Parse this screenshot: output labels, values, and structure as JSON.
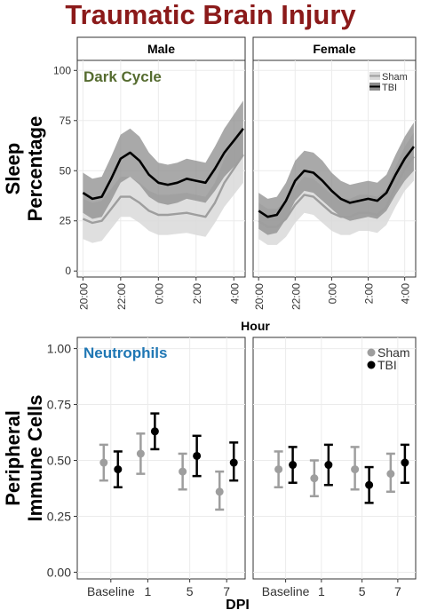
{
  "title": "Traumatic Brain Injury",
  "colors": {
    "title": "#8b1a1a",
    "dark_cycle_label": "#556b2f",
    "neutrophils_label": "#1f77b4",
    "sham": "#9e9e9e",
    "tbi": "#000000"
  },
  "chart_data": [
    {
      "type": "line",
      "panel_label": "Dark Cycle",
      "facets": [
        "Male",
        "Female"
      ],
      "xlabel": "Hour",
      "ylabel": "Sleep Percentage",
      "x_ticks": [
        "20:00",
        "22:00",
        "0:00",
        "2:00",
        "4:00"
      ],
      "x_tick_hours": [
        0,
        2,
        4,
        6,
        8
      ],
      "y_ticks": [
        0,
        25,
        50,
        75,
        100
      ],
      "ylim": [
        -3,
        105
      ],
      "xlim": [
        -0.3,
        8.6
      ],
      "legend": {
        "entries": [
          "Sham",
          "TBI"
        ],
        "position": "top-right"
      },
      "grid": true,
      "x": [
        0,
        0.5,
        1,
        1.5,
        2,
        2.5,
        3,
        3.5,
        4,
        4.5,
        5,
        5.5,
        6,
        6.5,
        7,
        7.5,
        8,
        8.5
      ],
      "series": [
        {
          "name": "Sham",
          "facet": "Male",
          "values": [
            26,
            24,
            25,
            31,
            37,
            37,
            34,
            30,
            28,
            28,
            28.5,
            29,
            28,
            27,
            34,
            44,
            51,
            58
          ],
          "lower": [
            16,
            14,
            15,
            21,
            27,
            27,
            24,
            20,
            18,
            18,
            18.5,
            19,
            18,
            17,
            24,
            32,
            38,
            44
          ],
          "upper": [
            36,
            34,
            35,
            41,
            47,
            47,
            44,
            40,
            38,
            38,
            38.5,
            39,
            38,
            37,
            44,
            56,
            64,
            72
          ]
        },
        {
          "name": "TBI",
          "facet": "Male",
          "values": [
            39,
            36,
            37,
            46,
            56,
            59,
            55,
            48,
            44,
            43,
            44,
            46,
            45,
            44,
            51,
            59,
            65,
            71
          ],
          "lower": [
            29,
            26,
            27,
            35,
            44,
            47,
            43,
            37,
            34,
            33,
            34,
            36,
            35,
            34,
            40,
            47,
            52,
            57
          ],
          "upper": [
            49,
            46,
            47,
            57,
            68,
            71,
            67,
            59,
            54,
            53,
            54,
            56,
            55,
            54,
            62,
            71,
            78,
            85
          ]
        },
        {
          "name": "Sham",
          "facet": "Female",
          "values": [
            25,
            22,
            22,
            26,
            33,
            38,
            37,
            33,
            29,
            27,
            27,
            29,
            29,
            28,
            32,
            42,
            51,
            57
          ],
          "lower": [
            16,
            13,
            13,
            17,
            24,
            29,
            28,
            24,
            20,
            18,
            18,
            20,
            20,
            19,
            23,
            32,
            40,
            45
          ],
          "upper": [
            34,
            31,
            31,
            35,
            42,
            47,
            46,
            42,
            38,
            36,
            36,
            38,
            38,
            37,
            41,
            52,
            62,
            69
          ]
        },
        {
          "name": "TBI",
          "facet": "Female",
          "values": [
            30,
            27,
            28,
            35,
            45,
            50,
            49,
            45,
            40,
            36,
            34,
            35,
            36,
            35,
            39,
            48,
            56,
            62
          ],
          "lower": [
            21,
            18,
            19,
            26,
            35,
            40,
            39,
            35,
            31,
            27,
            25,
            26,
            27,
            26,
            30,
            38,
            45,
            50
          ],
          "upper": [
            39,
            36,
            37,
            44,
            55,
            60,
            59,
            55,
            49,
            45,
            43,
            44,
            45,
            44,
            48,
            58,
            67,
            74
          ]
        }
      ]
    },
    {
      "type": "scatter",
      "panel_label": "Neutrophils",
      "facets": [
        "Male",
        "Female"
      ],
      "xlabel": "DPI",
      "ylabel": "Peripheral Immune Cells",
      "categories": [
        "Baseline",
        "1",
        "5",
        "7"
      ],
      "y_ticks": [
        "0.00",
        "0.25",
        "0.50",
        "0.75",
        "1.00"
      ],
      "y_tick_values": [
        0,
        0.25,
        0.5,
        0.75,
        1.0
      ],
      "ylim": [
        -0.03,
        1.05
      ],
      "legend": {
        "entries": [
          "Sham",
          "TBI"
        ],
        "position": "top-right"
      },
      "grid": true,
      "series": [
        {
          "name": "Sham",
          "facet": "Male",
          "values": [
            0.49,
            0.53,
            0.45,
            0.36
          ],
          "lower": [
            0.41,
            0.44,
            0.37,
            0.28
          ],
          "upper": [
            0.57,
            0.62,
            0.53,
            0.45
          ]
        },
        {
          "name": "TBI",
          "facet": "Male",
          "values": [
            0.46,
            0.63,
            0.52,
            0.49
          ],
          "lower": [
            0.38,
            0.55,
            0.43,
            0.41
          ],
          "upper": [
            0.54,
            0.71,
            0.61,
            0.58
          ]
        },
        {
          "name": "Sham",
          "facet": "Female",
          "values": [
            0.46,
            0.42,
            0.46,
            0.44
          ],
          "lower": [
            0.38,
            0.34,
            0.37,
            0.36
          ],
          "upper": [
            0.54,
            0.5,
            0.56,
            0.53
          ]
        },
        {
          "name": "TBI",
          "facet": "Female",
          "values": [
            0.48,
            0.48,
            0.39,
            0.49
          ],
          "lower": [
            0.4,
            0.39,
            0.31,
            0.4
          ],
          "upper": [
            0.56,
            0.57,
            0.47,
            0.57
          ]
        }
      ]
    }
  ]
}
